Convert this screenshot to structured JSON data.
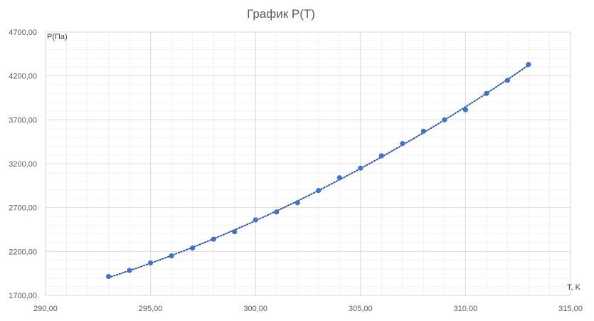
{
  "chart_data": {
    "type": "scatter",
    "title": "График P(T)",
    "xlabel": "T, K",
    "ylabel": "P(Па)",
    "xlim": [
      290,
      315
    ],
    "ylim": [
      1700,
      4700
    ],
    "x_ticks": [
      290,
      295,
      300,
      305,
      310,
      315
    ],
    "y_ticks": [
      1700,
      2200,
      2700,
      3200,
      3700,
      4200,
      4700
    ],
    "x_tick_labels": [
      "290,00",
      "295,00",
      "300,00",
      "305,00",
      "310,00",
      "315,00"
    ],
    "y_tick_labels": [
      "1700,00",
      "2200,00",
      "2700,00",
      "3200,00",
      "3700,00",
      "4200,00",
      "4700,00"
    ],
    "grid": true,
    "trendline": "dotted",
    "colors": {
      "marker": "#4472C4",
      "trendline": "#2F5597",
      "grid_major": "#D9D9D9",
      "grid_minor": "#F2F2F2",
      "axis_text": "#595959"
    },
    "series": [
      {
        "x": [
          293,
          294,
          295,
          296,
          297,
          298,
          299,
          300,
          301,
          302,
          303,
          304,
          305,
          306,
          307,
          308,
          309,
          310,
          311,
          312,
          313
        ],
        "y": [
          1915,
          1985,
          2070,
          2150,
          2240,
          2340,
          2425,
          2560,
          2650,
          2755,
          2895,
          3040,
          3150,
          3290,
          3430,
          3570,
          3700,
          3815,
          4000,
          4150,
          4330
        ]
      }
    ]
  }
}
